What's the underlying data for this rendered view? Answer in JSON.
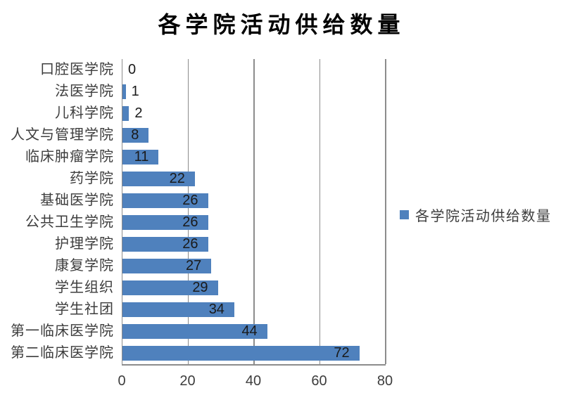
{
  "chart_data": {
    "type": "bar",
    "orientation": "horizontal",
    "title": "各学院活动供给数量",
    "legend": [
      "各学院活动供给数量"
    ],
    "legend_position": "right",
    "categories": [
      "口腔医学院",
      "法医学院",
      "儿科学院",
      "人文与管理学院",
      "临床肿瘤学院",
      "药学院",
      "基础医学院",
      "公共卫生学院",
      "护理学院",
      "康复学院",
      "学生组织",
      "学生社团",
      "第一临床医学院",
      "第二临床医学院"
    ],
    "values": [
      0,
      1,
      2,
      8,
      11,
      22,
      26,
      26,
      26,
      27,
      29,
      34,
      44,
      72
    ],
    "data_labels": [
      0,
      1,
      2,
      8,
      11,
      22,
      26,
      26,
      26,
      27,
      29,
      34,
      44,
      72
    ],
    "xlim": [
      0,
      80
    ],
    "x_ticks": [
      0,
      20,
      40,
      60,
      80
    ],
    "grid": "vertical-only",
    "colors": {
      "bar": "#4f81bd",
      "gridline": "#8c8c8c",
      "title": "#000000",
      "category_text": "#3d3d3d",
      "value_text": "#1a1a1a",
      "tick_text": "#3d3d3d"
    }
  }
}
